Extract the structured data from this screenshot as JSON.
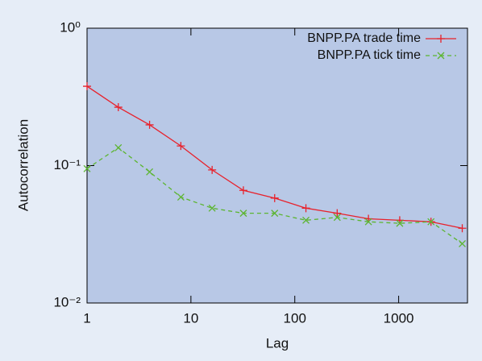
{
  "chart_data": {
    "type": "line",
    "x_label": "Lag",
    "y_label": "Autocorrelation",
    "x": [
      1,
      2,
      4,
      8,
      16,
      32,
      64,
      128,
      256,
      512,
      1024,
      2048,
      4096
    ],
    "series": [
      {
        "name": "BNPP.PA trade time",
        "color": "#e8212b",
        "marker": "plus",
        "dash": "solid",
        "values": [
          0.378,
          0.266,
          0.198,
          0.139,
          0.093,
          0.066,
          0.058,
          0.049,
          0.045,
          0.041,
          0.04,
          0.039,
          0.035
        ]
      },
      {
        "name": "BNPP.PA tick time",
        "color": "#5cb531",
        "marker": "cross",
        "dash": "dashed",
        "values": [
          0.095,
          0.135,
          0.09,
          0.059,
          0.049,
          0.045,
          0.045,
          0.04,
          0.042,
          0.039,
          0.038,
          0.039,
          0.027
        ]
      }
    ],
    "xscale": "log",
    "yscale": "log",
    "xlim": [
      1,
      4600
    ],
    "ylim": [
      0.01,
      1
    ],
    "xticks": [
      1,
      10,
      100,
      1000
    ],
    "yticks": [
      {
        "value": 0.01,
        "label": "10⁻²"
      },
      {
        "value": 0.1,
        "label": "10⁻¹"
      },
      {
        "value": 1,
        "label": "10⁰"
      }
    ],
    "legend": "top-right"
  }
}
